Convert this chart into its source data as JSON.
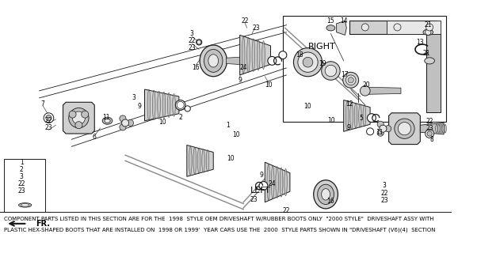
{
  "background_color": "#ffffff",
  "line_color": "#1a1a1a",
  "text_color": "#000000",
  "gray_light": "#e8e8e8",
  "gray_mid": "#c0c0c0",
  "gray_dark": "#888888",
  "gray_fill": "#d0d0d0",
  "footer_text_line1": "COMPONENT PARTS LISTED IN THIS SECTION ARE FOR THE  1998  STYLE OEM DRIVESHAFT W/RUBBER BOOTS ONLY  \"2000 STYLE\"  DRIVESHAFT ASSY WITH",
  "footer_text_line2": "PLASTIC HEX-SHAPED BOOTS THAT ARE INSTALLED ON  1998 OR 1999’  YEAR CARS USE THE  2000  STYLE PARTS SHOWN IN \"DRIVESHAFT (V6)(4)  SECTION",
  "label_RIGHT": "RIGHT",
  "label_LEFT": "LEFT",
  "label_FR": "FR.",
  "fig_width": 6.31,
  "fig_height": 3.2,
  "dpi": 100
}
